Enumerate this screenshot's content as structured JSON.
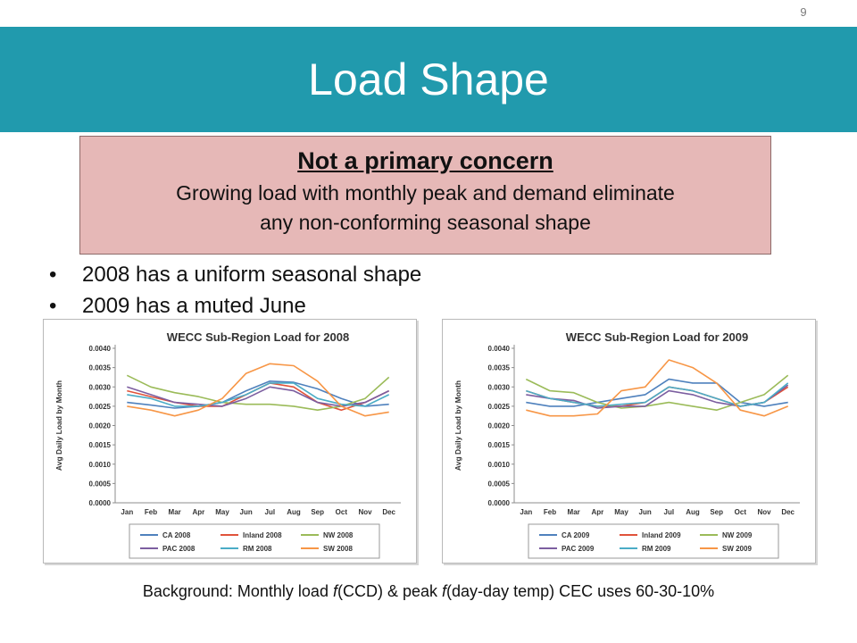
{
  "slide_number": "9",
  "title": "Load Shape",
  "callout": {
    "heading": "Not a primary concern",
    "line1": "Growing load with monthly peak and demand eliminate",
    "line2": "any non-conforming seasonal shape"
  },
  "bullets": [
    "2008 has a uniform seasonal shape",
    "2009 has a muted June"
  ],
  "footer": {
    "pre1": "Background: Monthly load ",
    "f1": "f",
    "mid": "(CCD) & peak ",
    "f2": "f",
    "post": "(day-day temp) CEC uses 60-30-10%"
  },
  "chart_data": [
    {
      "type": "line",
      "title": "WECC Sub-Region Load for 2008",
      "ylabel": "Avg Daily Load by Month",
      "categories": [
        "Jan",
        "Feb",
        "Mar",
        "Apr",
        "May",
        "Jun",
        "Jul",
        "Aug",
        "Sep",
        "Oct",
        "Nov",
        "Dec"
      ],
      "yticks": [
        "0.0000",
        "0.0005",
        "0.0010",
        "0.0015",
        "0.0020",
        "0.0025",
        "0.0030",
        "0.0035",
        "0.0040"
      ],
      "ylim": [
        0,
        0.004
      ],
      "grid": false,
      "legend_position": "bottom",
      "series": [
        {
          "name": "CA 2008",
          "color": "#4f81bd",
          "values": [
            0.0026,
            0.00253,
            0.00245,
            0.0025,
            0.0026,
            0.0029,
            0.00315,
            0.00312,
            0.00295,
            0.0027,
            0.0025,
            0.00255
          ]
        },
        {
          "name": "Inland 2008",
          "color": "#e0533b",
          "values": [
            0.0029,
            0.00275,
            0.0026,
            0.0025,
            0.0025,
            0.0028,
            0.0031,
            0.003,
            0.0026,
            0.0024,
            0.0026,
            0.0029
          ]
        },
        {
          "name": "NW 2008",
          "color": "#9bbb59",
          "values": [
            0.0033,
            0.003,
            0.00285,
            0.00275,
            0.0026,
            0.00255,
            0.00255,
            0.0025,
            0.0024,
            0.0025,
            0.0027,
            0.00325
          ]
        },
        {
          "name": "PAC 2008",
          "color": "#7c5ea0",
          "values": [
            0.003,
            0.0028,
            0.0026,
            0.00255,
            0.0025,
            0.0027,
            0.003,
            0.0029,
            0.0026,
            0.0025,
            0.0026,
            0.0029
          ]
        },
        {
          "name": "RM 2008",
          "color": "#4bacc6",
          "values": [
            0.0028,
            0.0027,
            0.0025,
            0.0025,
            0.0026,
            0.0028,
            0.0031,
            0.0031,
            0.0027,
            0.00255,
            0.0025,
            0.0028
          ]
        },
        {
          "name": "SW 2008",
          "color": "#f79646",
          "values": [
            0.0025,
            0.0024,
            0.00225,
            0.0024,
            0.0027,
            0.00335,
            0.0036,
            0.00355,
            0.00315,
            0.0025,
            0.00225,
            0.00235
          ]
        }
      ]
    },
    {
      "type": "line",
      "title": "WECC Sub-Region Load for 2009",
      "ylabel": "Avg Daily Load by Month",
      "categories": [
        "Jan",
        "Feb",
        "Mar",
        "Apr",
        "May",
        "Jun",
        "Jul",
        "Aug",
        "Sep",
        "Oct",
        "Nov",
        "Dec"
      ],
      "yticks": [
        "0.0000",
        "0.0005",
        "0.0010",
        "0.0015",
        "0.0020",
        "0.0025",
        "0.0030",
        "0.0035",
        "0.0040"
      ],
      "ylim": [
        0,
        0.004
      ],
      "grid": false,
      "legend_position": "bottom",
      "series": [
        {
          "name": "CA 2009",
          "color": "#4f81bd",
          "values": [
            0.0026,
            0.0025,
            0.0025,
            0.0026,
            0.0027,
            0.0028,
            0.0032,
            0.0031,
            0.0031,
            0.0026,
            0.0025,
            0.0026
          ]
        },
        {
          "name": "Inland 2009",
          "color": "#e0533b",
          "values": [
            0.0029,
            0.0027,
            0.0026,
            0.0025,
            0.0025,
            0.0026,
            0.003,
            0.0029,
            0.0027,
            0.0025,
            0.0026,
            0.003
          ]
        },
        {
          "name": "NW 2009",
          "color": "#9bbb59",
          "values": [
            0.0032,
            0.0029,
            0.00285,
            0.0026,
            0.00245,
            0.0025,
            0.0026,
            0.0025,
            0.0024,
            0.0026,
            0.0028,
            0.0033
          ]
        },
        {
          "name": "PAC 2009",
          "color": "#7c5ea0",
          "values": [
            0.0028,
            0.0027,
            0.00265,
            0.00245,
            0.0025,
            0.0025,
            0.0029,
            0.0028,
            0.0026,
            0.0025,
            0.0026,
            0.00305
          ]
        },
        {
          "name": "RM 2009",
          "color": "#4bacc6",
          "values": [
            0.0029,
            0.0027,
            0.0026,
            0.0025,
            0.00255,
            0.0026,
            0.003,
            0.0029,
            0.0027,
            0.0025,
            0.0026,
            0.0031
          ]
        },
        {
          "name": "SW 2009",
          "color": "#f79646",
          "values": [
            0.0024,
            0.00225,
            0.00225,
            0.0023,
            0.0029,
            0.003,
            0.0037,
            0.0035,
            0.0031,
            0.0024,
            0.00225,
            0.0025
          ]
        }
      ]
    }
  ]
}
